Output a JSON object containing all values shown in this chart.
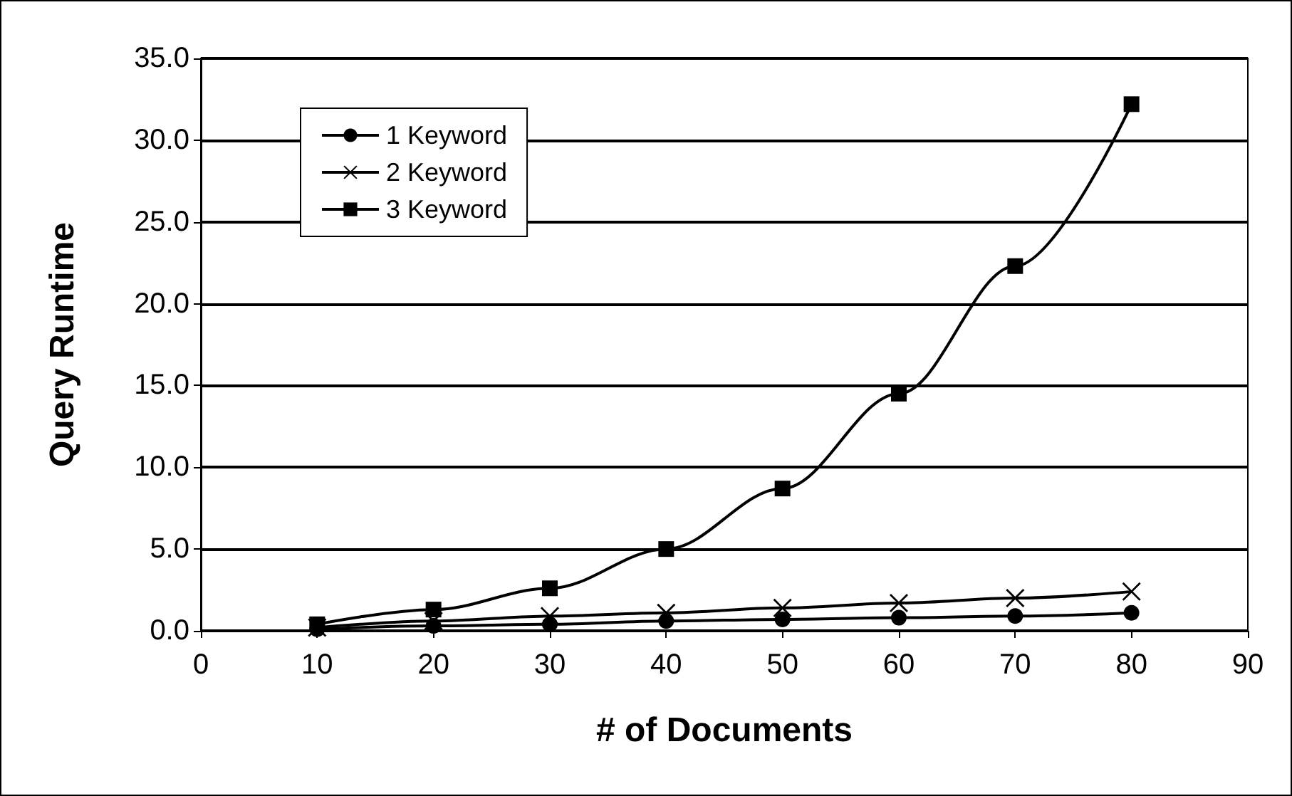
{
  "chart_data": {
    "type": "line",
    "xlabel": "# of Documents",
    "ylabel": "Query Runtime",
    "x": [
      10,
      20,
      30,
      40,
      50,
      60,
      70,
      80
    ],
    "series": [
      {
        "name": "1 Keyword",
        "color": "#000000",
        "marker": "circle",
        "values": [
          0.1,
          0.3,
          0.4,
          0.6,
          0.7,
          0.8,
          0.9,
          1.1
        ]
      },
      {
        "name": "2 Keyword",
        "color": "#000000",
        "marker": "cross",
        "values": [
          0.2,
          0.6,
          0.9,
          1.1,
          1.4,
          1.7,
          2.0,
          2.4
        ]
      },
      {
        "name": "3 Keyword",
        "color": "#000000",
        "marker": "square",
        "values": [
          0.4,
          1.3,
          2.6,
          5.0,
          8.7,
          14.5,
          22.3,
          32.2
        ]
      }
    ],
    "xlim": [
      0,
      90
    ],
    "xticks": [
      0,
      10,
      20,
      30,
      40,
      50,
      60,
      70,
      80,
      90
    ],
    "ylim": [
      0,
      35
    ],
    "yticks": [
      {
        "value": 0,
        "label": "0.0"
      },
      {
        "value": 5,
        "label": "5.0"
      },
      {
        "value": 10,
        "label": "10.0"
      },
      {
        "value": 15,
        "label": "15.0"
      },
      {
        "value": 20,
        "label": "20.0"
      },
      {
        "value": 25,
        "label": "25.0"
      },
      {
        "value": 30,
        "label": "30.0"
      },
      {
        "value": 35,
        "label": "35.0"
      }
    ],
    "grid": "y",
    "legend": "top left",
    "line_style": "solid"
  }
}
